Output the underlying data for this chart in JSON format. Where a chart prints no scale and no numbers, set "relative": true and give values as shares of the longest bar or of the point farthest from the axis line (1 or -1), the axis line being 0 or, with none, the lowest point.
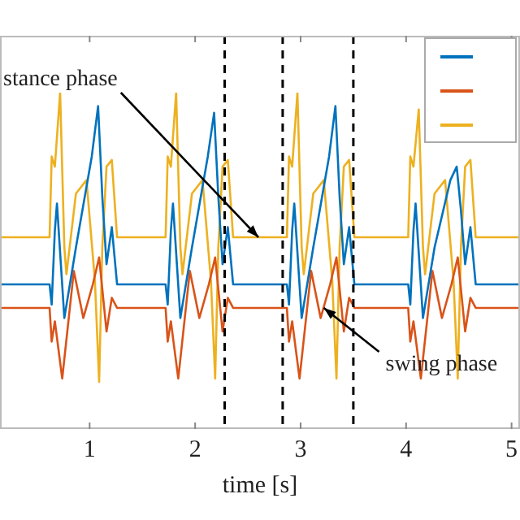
{
  "chart_data": {
    "type": "line",
    "relative": true,
    "xlabel": "time [s]",
    "xlim": [
      0.15,
      5.08
    ],
    "xticks": [
      1,
      2,
      3,
      4,
      5
    ],
    "tick_labels": "x",
    "grid": false,
    "marker": "none",
    "line_style": "solid",
    "series": [
      {
        "color": "#0072bd",
        "x": [
          0.15,
          0.62,
          0.64,
          0.67,
          0.69,
          0.76,
          0.87,
          1.02,
          1.08,
          1.12,
          1.16,
          1.21,
          1.26,
          1.72,
          1.74,
          1.77,
          1.79,
          1.86,
          1.97,
          2.12,
          2.18,
          2.22,
          2.26,
          2.31,
          2.36,
          2.87,
          2.89,
          2.92,
          2.94,
          3.01,
          3.12,
          3.27,
          3.33,
          3.37,
          3.41,
          3.46,
          3.51,
          4.02,
          4.04,
          4.07,
          4.09,
          4.16,
          4.27,
          4.42,
          4.48,
          4.52,
          4.56,
          4.61,
          4.66,
          5.08
        ],
        "values": [
          0.43,
          0.43,
          0.37,
          0.59,
          0.67,
          0.33,
          0.54,
          0.81,
          0.96,
          0.69,
          0.49,
          0.6,
          0.43,
          0.43,
          0.37,
          0.59,
          0.67,
          0.33,
          0.54,
          0.81,
          0.94,
          0.69,
          0.49,
          0.6,
          0.43,
          0.43,
          0.37,
          0.59,
          0.67,
          0.33,
          0.54,
          0.81,
          0.96,
          0.69,
          0.49,
          0.6,
          0.43,
          0.43,
          0.37,
          0.59,
          0.67,
          0.33,
          0.54,
          0.74,
          0.78,
          0.65,
          0.49,
          0.6,
          0.43,
          0.43
        ]
      },
      {
        "color": "#d95319",
        "x": [
          0.15,
          0.62,
          0.64,
          0.67,
          0.74,
          0.85,
          0.94,
          1.03,
          1.09,
          1.16,
          1.21,
          1.26,
          1.72,
          1.74,
          1.77,
          1.84,
          1.95,
          2.04,
          2.13,
          2.19,
          2.26,
          2.31,
          2.36,
          2.87,
          2.89,
          2.92,
          2.99,
          3.1,
          3.19,
          3.28,
          3.34,
          3.41,
          3.46,
          3.51,
          4.02,
          4.04,
          4.07,
          4.14,
          4.25,
          4.34,
          4.43,
          4.49,
          4.56,
          4.61,
          4.66,
          5.08
        ],
        "values": [
          0.36,
          0.36,
          0.26,
          0.32,
          0.15,
          0.47,
          0.33,
          0.43,
          0.51,
          0.29,
          0.39,
          0.36,
          0.36,
          0.26,
          0.32,
          0.15,
          0.47,
          0.33,
          0.43,
          0.51,
          0.29,
          0.39,
          0.36,
          0.36,
          0.26,
          0.32,
          0.15,
          0.47,
          0.33,
          0.43,
          0.51,
          0.29,
          0.39,
          0.36,
          0.36,
          0.26,
          0.32,
          0.15,
          0.47,
          0.33,
          0.43,
          0.51,
          0.29,
          0.39,
          0.36,
          0.36
        ]
      },
      {
        "color": "#edb120",
        "x": [
          0.15,
          0.62,
          0.64,
          0.67,
          0.72,
          0.76,
          0.78,
          0.87,
          0.97,
          1.05,
          1.09,
          1.12,
          1.16,
          1.21,
          1.26,
          1.72,
          1.74,
          1.77,
          1.82,
          1.86,
          1.88,
          1.97,
          2.07,
          2.15,
          2.19,
          2.22,
          2.26,
          2.31,
          2.36,
          2.87,
          2.89,
          2.92,
          2.97,
          3.01,
          3.03,
          3.12,
          3.22,
          3.3,
          3.34,
          3.37,
          3.41,
          3.46,
          3.51,
          4.02,
          4.04,
          4.07,
          4.12,
          4.16,
          4.18,
          4.27,
          4.37,
          4.45,
          4.49,
          4.52,
          4.56,
          4.61,
          4.66,
          5.08
        ],
        "values": [
          0.57,
          0.57,
          0.81,
          0.78,
          1,
          0.54,
          0.46,
          0.7,
          0.74,
          0.44,
          0.14,
          0.54,
          0.78,
          0.8,
          0.57,
          0.57,
          0.81,
          0.78,
          1,
          0.54,
          0.46,
          0.7,
          0.74,
          0.44,
          0.15,
          0.54,
          0.78,
          0.8,
          0.57,
          0.57,
          0.81,
          0.78,
          1,
          0.54,
          0.46,
          0.7,
          0.74,
          0.44,
          0.15,
          0.54,
          0.78,
          0.8,
          0.57,
          0.57,
          0.81,
          0.78,
          0.95,
          0.54,
          0.46,
          0.7,
          0.74,
          0.44,
          0.15,
          0.54,
          0.78,
          0.8,
          0.57,
          0.57
        ]
      }
    ],
    "ref_lines": [
      {
        "axis": "x",
        "value": 2.28,
        "color": "#000000",
        "line_style": "dashed"
      },
      {
        "axis": "x",
        "value": 2.83,
        "color": "#000000",
        "line_style": "dashed"
      },
      {
        "axis": "x",
        "value": 3.5,
        "color": "#000000",
        "line_style": "dashed"
      }
    ],
    "annotations": [
      {
        "text": "stance phase",
        "x": 2.6,
        "y": 0.57
      },
      {
        "text": "swing phase",
        "x": 3.22,
        "y": 0.36
      }
    ]
  }
}
